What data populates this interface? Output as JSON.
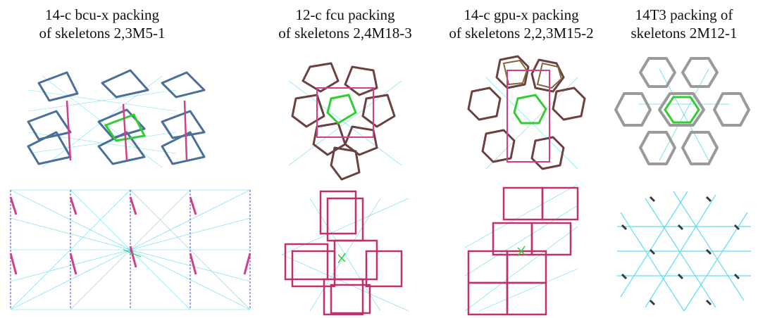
{
  "panels": [
    {
      "id": "bcu",
      "line1": "14-c bcu-x packing",
      "line2": "of skeletons 2,3M5-1"
    },
    {
      "id": "fcu",
      "line1": "12-c fcu packing",
      "line2": "of skeletons 2,4M18-3"
    },
    {
      "id": "gpu",
      "line1": "14-c gpu-x packing",
      "line2": "of skeletons 2,2,3M15-2"
    },
    {
      "id": "14t3",
      "line1": "14T3 packing of",
      "line2": "skeletons 2M12-1"
    }
  ],
  "colors": {
    "skeleton_blue": "#4a6f98",
    "skeleton_brown": "#6b4040",
    "skeleton_olive": "#7a6a3a",
    "skeleton_gray": "#9a9a9a",
    "highlight_green": "#33cc33",
    "bond_magenta": "#d0408a",
    "net_cyan": "#5fdcee",
    "net_blue_dashed": "#3b4fd0",
    "node_dark": "#3a3a3a"
  }
}
